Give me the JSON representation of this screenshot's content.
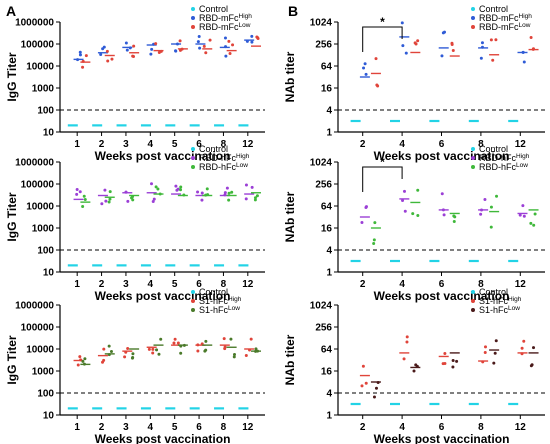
{
  "panel_letters": [
    "A",
    "B"
  ],
  "chart_data": [
    {
      "type": "scatter",
      "xlabel": "Weeks post vaccination",
      "ylabel": "IgG Titer",
      "yscale": "log",
      "ylim": [
        10,
        1000000
      ],
      "yticks": [
        "10",
        "100",
        "1000",
        "10000",
        "100000",
        "1000000"
      ],
      "categories": [
        "1",
        "2",
        "3",
        "4",
        "5",
        "6",
        "8",
        "12"
      ],
      "cutoff": 100,
      "legend": [
        {
          "label": "Control",
          "sup": "",
          "color": "#22d3e6"
        },
        {
          "label": "RBD-mFc",
          "sup": "High",
          "color": "#2f5bd6"
        },
        {
          "label": "RBD-mFc",
          "sup": "Low",
          "color": "#e0443a"
        }
      ],
      "series": [
        {
          "color": "#22d3e6",
          "values": [
            20,
            20,
            20,
            20,
            20,
            20,
            20,
            20
          ],
          "control": true
        },
        {
          "color": "#2f5bd6",
          "values": [
            20000,
            40000,
            70000,
            90000,
            100000,
            100000,
            70000,
            150000
          ]
        },
        {
          "color": "#e0443a",
          "values": [
            15000,
            30000,
            40000,
            50000,
            60000,
            60000,
            50000,
            80000
          ]
        }
      ]
    },
    {
      "type": "scatter",
      "xlabel": "Weeks post vaccination",
      "ylabel": "NAb titer",
      "yscale": "log",
      "ylim": [
        1,
        1024
      ],
      "yticks": [
        "1",
        "4",
        "16",
        "64",
        "256",
        "1024"
      ],
      "categories": [
        "2",
        "4",
        "6",
        "8",
        "12"
      ],
      "cutoff": 4,
      "significance": {
        "from": 0,
        "to": 1,
        "label": "*"
      },
      "legend": [
        {
          "label": "Control",
          "sup": "",
          "color": "#22d3e6"
        },
        {
          "label": "RBD-mFc",
          "sup": "High",
          "color": "#2f5bd6"
        },
        {
          "label": "RBD-mFc",
          "sup": "Low",
          "color": "#e0443a"
        }
      ],
      "series": [
        {
          "color": "#22d3e6",
          "values": [
            2,
            2,
            2,
            2,
            2
          ],
          "control": true
        },
        {
          "color": "#2f5bd6",
          "values": [
            32,
            400,
            200,
            200,
            150
          ]
        },
        {
          "color": "#e0443a",
          "values": [
            40,
            150,
            120,
            130,
            180
          ]
        }
      ]
    },
    {
      "type": "scatter",
      "xlabel": "Weeks post vaccination",
      "ylabel": "IgG Titer",
      "yscale": "log",
      "ylim": [
        10,
        1000000
      ],
      "yticks": [
        "10",
        "100",
        "1000",
        "10000",
        "100000",
        "1000000"
      ],
      "categories": [
        "1",
        "2",
        "3",
        "4",
        "5",
        "6",
        "8",
        "12"
      ],
      "cutoff": 100,
      "legend": [
        {
          "label": "Control",
          "sup": "",
          "color": "#22d3e6"
        },
        {
          "label": "RBD-hFc",
          "sup": "High",
          "color": "#9b3fd6"
        },
        {
          "label": "RBD-hFc",
          "sup": "Low",
          "color": "#3fb83a"
        }
      ],
      "series": [
        {
          "color": "#22d3e6",
          "values": [
            20,
            20,
            20,
            20,
            20,
            20,
            20,
            20
          ],
          "control": true
        },
        {
          "color": "#9b3fd6",
          "values": [
            20000,
            30000,
            40000,
            40000,
            35000,
            30000,
            30000,
            35000
          ]
        },
        {
          "color": "#3fb83a",
          "values": [
            15000,
            25000,
            30000,
            35000,
            30000,
            30000,
            30000,
            40000
          ]
        }
      ]
    },
    {
      "type": "scatter",
      "xlabel": "Weeks post vaccination",
      "ylabel": "NAb titer",
      "yscale": "log",
      "ylim": [
        1,
        1024
      ],
      "yticks": [
        "1",
        "4",
        "16",
        "64",
        "256",
        "1024"
      ],
      "categories": [
        "2",
        "4",
        "6",
        "8",
        "12"
      ],
      "cutoff": 4,
      "significance": {
        "from": 0,
        "to": 1,
        "label": "*"
      },
      "legend": [
        {
          "label": "Control",
          "sup": "",
          "color": "#22d3e6"
        },
        {
          "label": "RBD-hFc",
          "sup": "High",
          "color": "#9b3fd6"
        },
        {
          "label": "RBD-hFc",
          "sup": "Low",
          "color": "#3fb83a"
        }
      ],
      "series": [
        {
          "color": "#22d3e6",
          "values": [
            2,
            2,
            2,
            2,
            2
          ],
          "control": true
        },
        {
          "color": "#9b3fd6",
          "values": [
            32,
            100,
            50,
            50,
            40
          ]
        },
        {
          "color": "#3fb83a",
          "values": [
            16,
            80,
            40,
            45,
            50
          ]
        }
      ]
    },
    {
      "type": "scatter",
      "xlabel": "Weeks post vaccination",
      "ylabel": "IgG Titer",
      "yscale": "log",
      "ylim": [
        10,
        1000000
      ],
      "yticks": [
        "10",
        "100",
        "1000",
        "10000",
        "100000",
        "1000000"
      ],
      "categories": [
        "1",
        "2",
        "3",
        "4",
        "5",
        "6",
        "8",
        "12"
      ],
      "cutoff": 100,
      "legend": [
        {
          "label": "Control",
          "sup": "",
          "color": "#22d3e6"
        },
        {
          "label": "S1-hFc",
          "sup": "High",
          "color": "#e0443a"
        },
        {
          "label": "S1-hFc",
          "sup": "Low",
          "color": "#4a7a2a"
        }
      ],
      "series": [
        {
          "color": "#22d3e6",
          "values": [
            20,
            20,
            20,
            20,
            20,
            20,
            20,
            20
          ],
          "control": true
        },
        {
          "color": "#e0443a",
          "values": [
            3000,
            5000,
            8000,
            12000,
            15000,
            15000,
            15000,
            10000
          ]
        },
        {
          "color": "#4a7a2a",
          "values": [
            2000,
            6000,
            10000,
            15000,
            15000,
            15000,
            12000,
            8000
          ]
        }
      ]
    },
    {
      "type": "scatter",
      "xlabel": "Weeks post vaccination",
      "ylabel": "NAb titer",
      "yscale": "log",
      "ylim": [
        1,
        1024
      ],
      "yticks": [
        "1",
        "4",
        "16",
        "64",
        "256",
        "1024"
      ],
      "categories": [
        "2",
        "4",
        "6",
        "8",
        "12"
      ],
      "cutoff": 4,
      "legend": [
        {
          "label": "Control",
          "sup": "",
          "color": "#22d3e6"
        },
        {
          "label": "S1-hFc",
          "sup": "High",
          "color": "#e0443a"
        },
        {
          "label": "S1-hFc",
          "sup": "Low",
          "color": "#4a1a1a"
        }
      ],
      "series": [
        {
          "color": "#22d3e6",
          "values": [
            2,
            2,
            2,
            2,
            2
          ],
          "control": true
        },
        {
          "color": "#e0443a",
          "values": [
            12,
            50,
            40,
            30,
            50
          ]
        },
        {
          "color": "#4a1a1a",
          "values": [
            8,
            20,
            50,
            60,
            50
          ]
        }
      ]
    }
  ]
}
